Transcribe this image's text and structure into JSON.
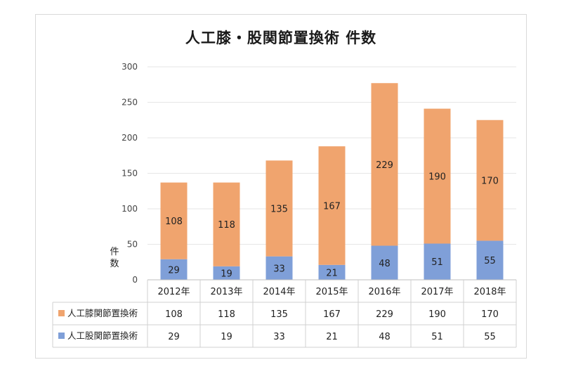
{
  "chart_data": {
    "type": "bar",
    "stacked": true,
    "title": "人工膝・股関節置換術 件数",
    "ylabel": "件数",
    "ylim": [
      0,
      300
    ],
    "yticks": [
      0,
      50,
      100,
      150,
      200,
      250,
      300
    ],
    "grid": true,
    "legend": "data-table-left",
    "categories": [
      "2012年",
      "2013年",
      "2014年",
      "2015年",
      "2016年",
      "2017年",
      "2018年"
    ],
    "series": [
      {
        "name": "人工股関節置換術",
        "color": "#7f9fd8",
        "values": [
          29,
          19,
          33,
          21,
          48,
          51,
          55
        ]
      },
      {
        "name": "人工膝関節置換術",
        "color": "#f0a46e",
        "values": [
          108,
          118,
          135,
          167,
          229,
          190,
          170
        ]
      }
    ],
    "table_order": [
      1,
      0
    ]
  }
}
